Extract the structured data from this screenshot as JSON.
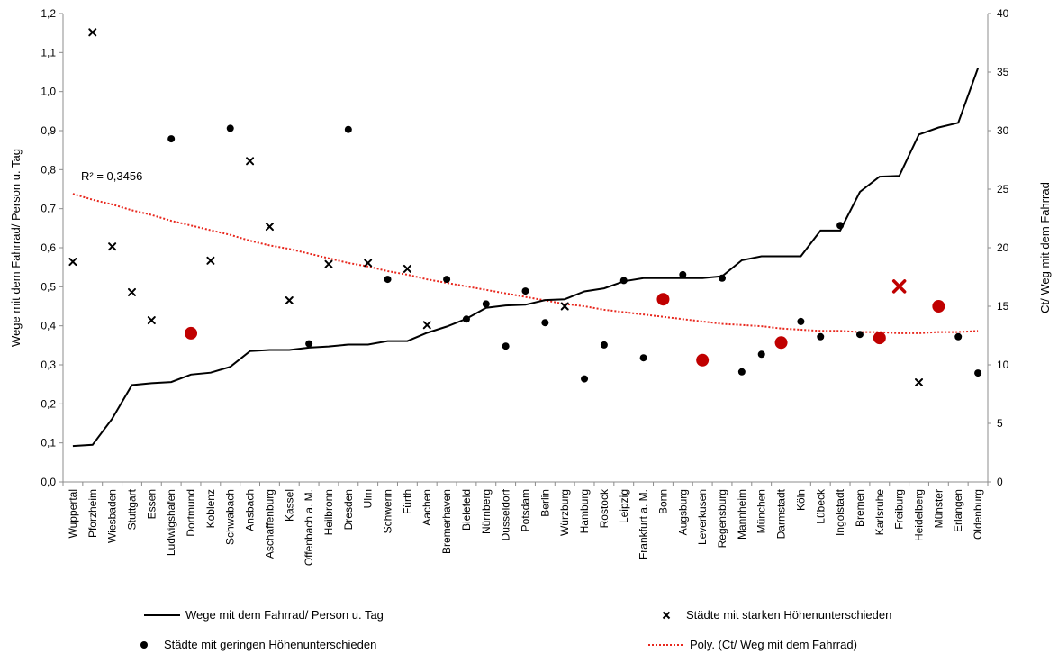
{
  "chart_data": {
    "type": "line",
    "categories": [
      "Wuppertal",
      "Pforzheim",
      "Wiesbaden",
      "Stuttgart",
      "Essen",
      "Ludwigshafen",
      "Dortmund",
      "Koblenz",
      "Schwabach",
      "Ansbach",
      "Aschaffenburg",
      "Kassel",
      "Offenbach a. M.",
      "Heilbronn",
      "Dresden",
      "Ulm",
      "Schwerin",
      "Fürth",
      "Aachen",
      "Bremerhaven",
      "Bielefeld",
      "Nürnberg",
      "Düsseldorf",
      "Potsdam",
      "Berlin",
      "Würzburg",
      "Hamburg",
      "Rostock",
      "Leipzig",
      "Frankfurt a. M.",
      "Bonn",
      "Augsburg",
      "Leverkusen",
      "Regensburg",
      "Mannheim",
      "München",
      "Darmstadt",
      "Köln",
      "Lübeck",
      "Ingolstadt",
      "Bremen",
      "Karlsruhe",
      "Freiburg",
      "Heidelberg",
      "Münster",
      "Erlangen",
      "Oldenburg"
    ],
    "ylabel": "Wege mit dem Fahrrad/ Person u. Tag",
    "y2label": "Ct/ Weg mit dem Fahrrad",
    "ylim": [
      0,
      1.2
    ],
    "y2lim": [
      0,
      40
    ],
    "yticks": [
      "0,0",
      "0,1",
      "0,2",
      "0,3",
      "0,4",
      "0,5",
      "0,6",
      "0,7",
      "0,8",
      "0,9",
      "1,0",
      "1,1",
      "1,2"
    ],
    "y2ticks": [
      "0",
      "5",
      "10",
      "15",
      "20",
      "25",
      "30",
      "35",
      "40"
    ],
    "annotation": "R² = 0,3456",
    "grid": false,
    "legend_position": "bottom",
    "series": [
      {
        "name": "Wege mit dem Fahrrad/ Person u. Tag",
        "kind": "line",
        "axis": "left",
        "color": "#000000",
        "values": [
          0.092,
          0.095,
          0.162,
          0.248,
          0.253,
          0.256,
          0.275,
          0.28,
          0.295,
          0.335,
          0.338,
          0.338,
          0.344,
          0.347,
          0.352,
          0.352,
          0.361,
          0.361,
          0.382,
          0.398,
          0.418,
          0.446,
          0.452,
          0.454,
          0.466,
          0.468,
          0.488,
          0.496,
          0.514,
          0.522,
          0.522,
          0.522,
          0.522,
          0.527,
          0.568,
          0.578,
          0.578,
          0.578,
          0.644,
          0.644,
          0.743,
          0.782,
          0.784,
          0.89,
          0.908,
          0.92,
          1.06
        ]
      },
      {
        "name": "Städte mit starken Höhenunterschieden",
        "kind": "marker-x",
        "axis": "right",
        "color": "#000000",
        "values": [
          18.8,
          38.4,
          20.1,
          16.2,
          13.8,
          null,
          null,
          18.9,
          null,
          27.4,
          21.8,
          15.5,
          null,
          18.6,
          null,
          18.7,
          null,
          18.2,
          13.4,
          null,
          null,
          null,
          null,
          null,
          null,
          15.0,
          null,
          null,
          null,
          null,
          null,
          null,
          null,
          null,
          null,
          null,
          null,
          null,
          null,
          null,
          null,
          null,
          16.7,
          8.5,
          null,
          null,
          null
        ],
        "highlight": [
          "Freiburg"
        ]
      },
      {
        "name": "Städte mit geringen Höhenunterschieden",
        "kind": "marker-dot",
        "axis": "right",
        "color": "#000000",
        "values": [
          null,
          null,
          null,
          null,
          null,
          29.3,
          12.7,
          null,
          30.2,
          null,
          null,
          null,
          11.8,
          null,
          30.1,
          null,
          17.3,
          null,
          null,
          17.3,
          13.9,
          15.2,
          11.6,
          16.3,
          13.6,
          null,
          8.8,
          11.7,
          17.2,
          10.6,
          15.6,
          17.7,
          10.4,
          17.4,
          9.4,
          10.9,
          11.9,
          13.7,
          12.4,
          21.9,
          12.6,
          12.3,
          null,
          null,
          15.0,
          12.4,
          9.3
        ],
        "highlight": [
          "Dortmund",
          "Bonn",
          "Leverkusen",
          "Darmstadt",
          "Karlsruhe",
          "Münster"
        ]
      },
      {
        "name": "Poly. (Ct/ Weg mit dem Fahrrad)",
        "kind": "trend",
        "axis": "right",
        "color": "#e8281e",
        "values": [
          24.6,
          24.1,
          23.7,
          23.2,
          22.8,
          22.3,
          21.9,
          21.5,
          21.1,
          20.6,
          20.2,
          19.9,
          19.5,
          19.1,
          18.7,
          18.4,
          18.0,
          17.7,
          17.3,
          17.0,
          16.7,
          16.4,
          16.1,
          15.8,
          15.5,
          15.2,
          15.0,
          14.7,
          14.5,
          14.3,
          14.1,
          13.9,
          13.7,
          13.5,
          13.4,
          13.3,
          13.1,
          13.0,
          12.9,
          12.9,
          12.8,
          12.8,
          12.7,
          12.7,
          12.8,
          12.8,
          12.9
        ]
      }
    ]
  },
  "colors": {
    "highlight": "#c00000",
    "trend": "#e8281e",
    "line": "#000000",
    "axis": "#8c8c8c"
  }
}
